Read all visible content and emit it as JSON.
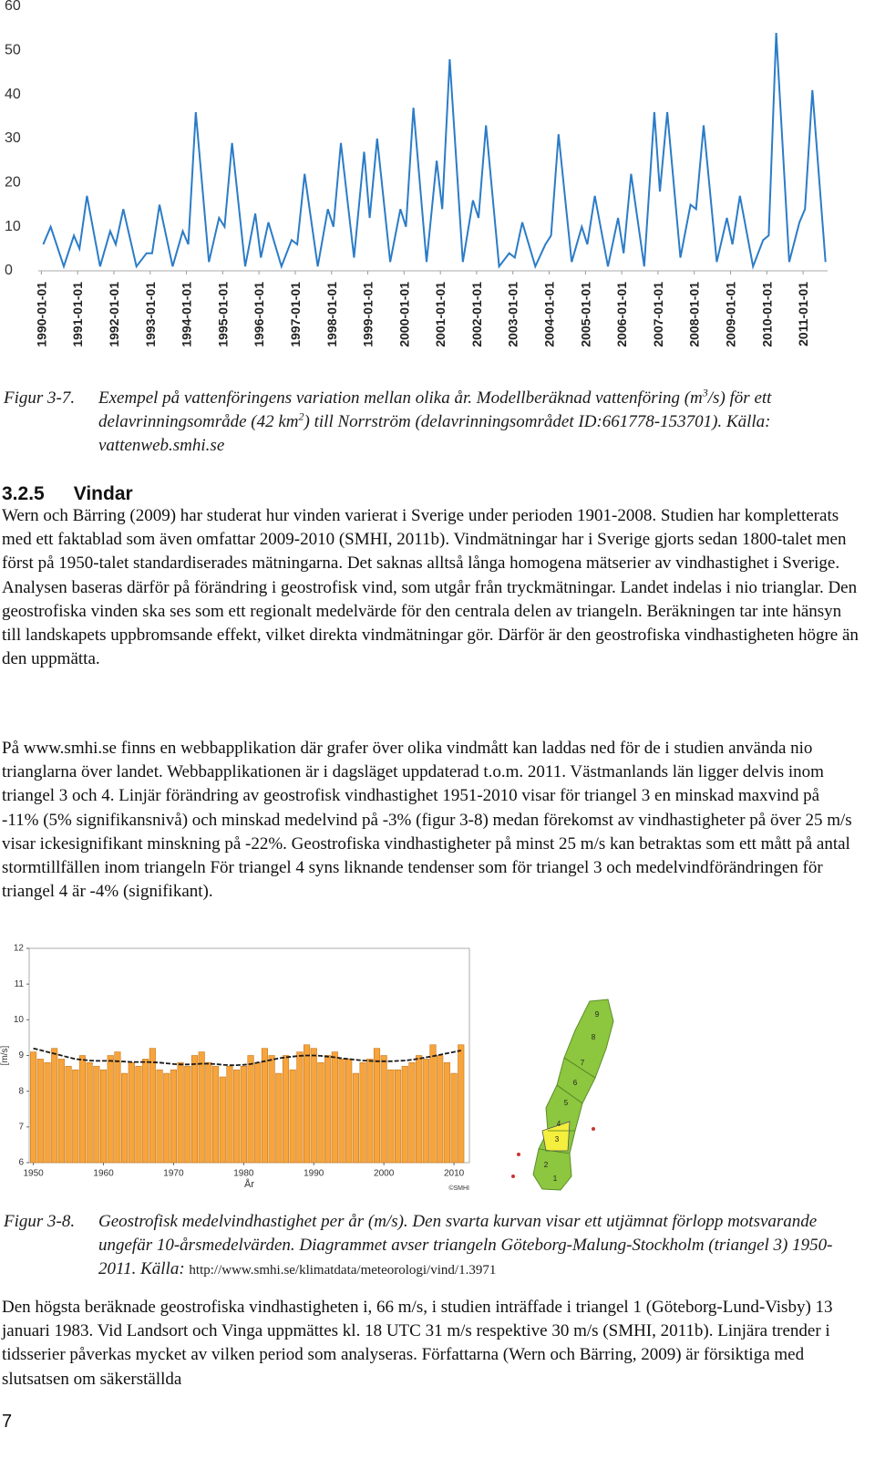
{
  "chart_data": [
    {
      "type": "line",
      "color": "#2b7cc7",
      "x": [
        "1990-01-20",
        "1990-04-05",
        "1990-08-15",
        "1990-11-25",
        "1991-01-20",
        "1991-04-05",
        "1991-08-15",
        "1991-11-25",
        "1992-01-20",
        "1992-04-05",
        "1992-08-15",
        "1992-11-25",
        "1993-01-20",
        "1993-04-05",
        "1993-08-15",
        "1993-11-25",
        "1994-01-20",
        "1994-04-05",
        "1994-08-15",
        "1994-11-25",
        "1995-01-20",
        "1995-04-05",
        "1995-08-15",
        "1995-11-25",
        "1996-01-20",
        "1996-04-05",
        "1996-08-15",
        "1996-11-25",
        "1997-01-20",
        "1997-04-05",
        "1997-08-15",
        "1997-11-25",
        "1998-01-20",
        "1998-04-05",
        "1998-08-15",
        "1998-11-25",
        "1999-01-20",
        "1999-04-05",
        "1999-08-15",
        "1999-11-25",
        "2000-01-20",
        "2000-04-05",
        "2000-08-15",
        "2000-11-25",
        "2001-01-20",
        "2001-04-05",
        "2001-08-15",
        "2001-11-25",
        "2002-01-20",
        "2002-04-05",
        "2002-08-15",
        "2002-11-25",
        "2003-01-20",
        "2003-04-05",
        "2003-08-15",
        "2003-11-25",
        "2004-01-20",
        "2004-04-05",
        "2004-08-15",
        "2004-11-25",
        "2005-01-20",
        "2005-04-05",
        "2005-08-15",
        "2005-11-25",
        "2006-01-20",
        "2006-04-05",
        "2006-08-15",
        "2006-11-25",
        "2007-01-20",
        "2007-04-05",
        "2007-08-15",
        "2007-11-25",
        "2008-01-20",
        "2008-04-05",
        "2008-08-15",
        "2008-11-25",
        "2009-01-20",
        "2009-04-05",
        "2009-08-15",
        "2009-11-25",
        "2010-01-20",
        "2010-04-05",
        "2010-08-15",
        "2010-11-25",
        "2011-01-20",
        "2011-04-05",
        "2011-08-15"
      ],
      "values": [
        6,
        10,
        1,
        8,
        5,
        17,
        1,
        9,
        6,
        14,
        1,
        4,
        4,
        15,
        1,
        9,
        6,
        36,
        2,
        12,
        10,
        29,
        1,
        13,
        3,
        11,
        1,
        7,
        6,
        22,
        1,
        14,
        10,
        29,
        3,
        27,
        12,
        30,
        2,
        14,
        10,
        37,
        2,
        25,
        14,
        48,
        2,
        16,
        12,
        33,
        1,
        4,
        3,
        11,
        1,
        6,
        8,
        31,
        2,
        10,
        6,
        17,
        1,
        12,
        4,
        22,
        1,
        36,
        18,
        36,
        3,
        15,
        14,
        33,
        2,
        12,
        6,
        17,
        1,
        7,
        8,
        54,
        2,
        11,
        14,
        41,
        2
      ],
      "xlim": [
        "1989-12-01",
        "2011-09-05"
      ],
      "xticks": [
        "1990-01-01",
        "1991-01-01",
        "1992-01-01",
        "1993-01-01",
        "1994-01-01",
        "1995-01-01",
        "1996-01-01",
        "1997-01-01",
        "1998-01-01",
        "1999-01-01",
        "2000-01-01",
        "2001-01-01",
        "2002-01-01",
        "2003-01-01",
        "2004-01-01",
        "2005-01-01",
        "2006-01-01",
        "2007-01-01",
        "2008-01-01",
        "2009-01-01",
        "2010-01-01",
        "2011-01-01"
      ],
      "ylim": [
        0,
        60
      ],
      "yticks": [
        0,
        10,
        20,
        30,
        40,
        50,
        60
      ],
      "grid": false
    },
    {
      "type": "bar",
      "color": "#f6a43c",
      "line_color": "#1a1a1a",
      "x": [
        1950,
        1951,
        1952,
        1953,
        1954,
        1955,
        1956,
        1957,
        1958,
        1959,
        1960,
        1961,
        1962,
        1963,
        1964,
        1965,
        1966,
        1967,
        1968,
        1969,
        1970,
        1971,
        1972,
        1973,
        1974,
        1975,
        1976,
        1977,
        1978,
        1979,
        1980,
        1981,
        1982,
        1983,
        1984,
        1985,
        1986,
        1987,
        1988,
        1989,
        1990,
        1991,
        1992,
        1993,
        1994,
        1995,
        1996,
        1997,
        1998,
        1999,
        2000,
        2001,
        2002,
        2003,
        2004,
        2005,
        2006,
        2007,
        2008,
        2009,
        2010,
        2011
      ],
      "values": [
        9.1,
        8.9,
        8.8,
        9.2,
        8.9,
        8.7,
        8.6,
        9.0,
        8.8,
        8.7,
        8.6,
        9.0,
        9.1,
        8.5,
        8.8,
        8.7,
        8.9,
        9.2,
        8.6,
        8.5,
        8.6,
        8.8,
        8.7,
        9.0,
        9.1,
        8.8,
        8.7,
        8.4,
        8.7,
        8.6,
        8.7,
        9.0,
        8.8,
        9.2,
        9.0,
        8.5,
        9.0,
        8.6,
        9.1,
        9.3,
        9.2,
        8.8,
        9.0,
        9.1,
        8.9,
        8.9,
        8.5,
        8.8,
        8.9,
        9.2,
        9.0,
        8.6,
        8.6,
        8.7,
        8.8,
        9.0,
        8.9,
        9.3,
        9.0,
        8.8,
        8.5,
        9.3
      ],
      "line_values": [
        9.2,
        9.15,
        9.1,
        9.05,
        9.0,
        8.95,
        8.9,
        8.88,
        8.86,
        8.85,
        8.85,
        8.85,
        8.84,
        8.83,
        8.82,
        8.82,
        8.82,
        8.81,
        8.8,
        8.78,
        8.76,
        8.75,
        8.75,
        8.76,
        8.77,
        8.77,
        8.76,
        8.74,
        8.73,
        8.73,
        8.74,
        8.76,
        8.8,
        8.84,
        8.88,
        8.92,
        8.95,
        8.97,
        8.99,
        9.0,
        9.0,
        8.99,
        8.97,
        8.95,
        8.92,
        8.9,
        8.88,
        8.86,
        8.85,
        8.84,
        8.84,
        8.84,
        8.85,
        8.86,
        8.88,
        8.91,
        8.95,
        8.98,
        9.02,
        9.06,
        9.1,
        9.14
      ],
      "xlim": [
        1949.4,
        2012.2
      ],
      "xticks": [
        1950,
        1960,
        1970,
        1980,
        1990,
        2000,
        2010
      ],
      "ylim": [
        6,
        12
      ],
      "yticks": [
        6,
        7,
        8,
        9,
        10,
        11,
        12
      ],
      "xlabel": "År",
      "ylabel": "[m/s]",
      "note": "©SMHI",
      "grid": false
    }
  ],
  "caption1": {
    "label": "Figur 3-7.",
    "parts": [
      "Exempel på vattenföringens variation mellan olika år. Modellberäknad vattenföring (m",
      "3",
      "/s) för ett delavrinningsområde (42 km",
      "2",
      ") till Norrström (delavrinningsområdet ID:661778-153701). Källa: vattenweb.smhi.se"
    ]
  },
  "heading": {
    "number": "3.2.5",
    "title": "Vindar"
  },
  "paragraphs": [
    "Wern och Bärring (2009) har studerat hur vinden varierat i Sverige under perioden 1901-2008. Studien har kompletterats med ett faktablad som även omfattar 2009-2010 (SMHI, 2011b). Vindmätningar har i Sverige gjorts sedan 1800-talet men först på 1950-talet standardiserades mätningarna. Det saknas alltså långa homogena mätserier av vindhastighet i Sverige. Analysen baseras därför på förändring i geostrofisk vind, som utgår från tryckmätningar. Landet indelas i nio trianglar. Den geostrofiska vinden ska ses som ett regionalt medelvärde för den centrala delen av triangeln. Beräkningen tar inte hänsyn till landskapets uppbromsande effekt, vilket direkta vindmätningar gör. Därför är den geostrofiska vindhastigheten högre än den uppmätta.",
    "På www.smhi.se finns en webbapplikation där grafer över olika vindmått kan laddas ned för de i studien använda nio trianglarna över landet. Webbapplikationen är i dagsläget uppdaterad t.o.m. 2011. Västmanlands län ligger delvis inom triangel 3 och 4. Linjär förändring av geostrofisk vindhastighet 1951-2010 visar för triangel 3 en minskad maxvind på -11% (5% signifikansnivå) och minskad medelvind på -3% (figur 3-8) medan förekomst av vindhastigheter på över 25 m/s visar ickesignifikant minskning på -22%. Geostrofiska vindhastigheter på minst 25 m/s kan betraktas som ett mått på antal stormtillfällen inom triangeln För triangel 4 syns liknande tendenser som för triangel 3 och medelvindförändringen för triangel 4 är -4% (signifikant).",
    "Den högsta beräknade geostrofiska vindhastigheten i, 66 m/s, i studien inträffade i triangel 1 (Göteborg-Lund-Visby) 13 januari 1983. Vid Landsort och Vinga uppmättes kl. 18 UTC 31 m/s respektive 30 m/s (SMHI, 2011b). Linjära trender i tidsserier påverkas mycket av vilken period som analyseras. Författarna (Wern och Bärring, 2009) är försiktiga med slutsatsen om säkerställda"
  ],
  "map": {
    "labels": [
      "9",
      "8",
      "7",
      "6",
      "5",
      "4",
      "3",
      "2",
      "1"
    ]
  },
  "caption2": {
    "label": "Figur 3-8.",
    "text": "Geostrofisk medelvindhastighet per år (m/s). Den svarta kurvan visar ett utjämnat förlopp motsvarande ungefär 10-årsmedelvärden. Diagrammet avser triangeln Göteborg-Malung-Stockholm (triangel 3) 1950-2011. Källa: ",
    "source": "http://www.smhi.se/klimatdata/meteorologi/vind/1.3971"
  },
  "page_number": "7"
}
